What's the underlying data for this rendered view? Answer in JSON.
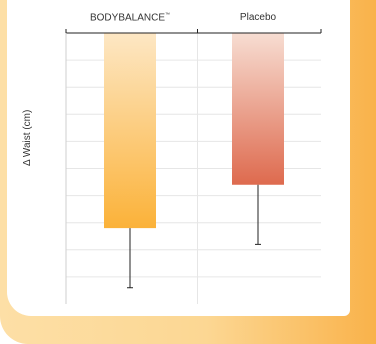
{
  "chart_data": {
    "type": "bar",
    "categories": [
      "BODYBALANCE",
      "Placebo"
    ],
    "category_marks": [
      "™",
      ""
    ],
    "values": [
      -3.6,
      -2.8
    ],
    "errors": [
      1.1,
      1.1
    ],
    "title": "",
    "xlabel": "",
    "ylabel": "Δ Waist (cm)",
    "ylim": [
      -5,
      0
    ],
    "grid": true,
    "colors": {
      "bar1_top": "#fde7c4",
      "bar1_bottom": "#fbb239",
      "bar2_top": "#f7ddd2",
      "bar2_bottom": "#de6a4e",
      "axis": "#222222",
      "grid": "#e6e6e6"
    }
  }
}
